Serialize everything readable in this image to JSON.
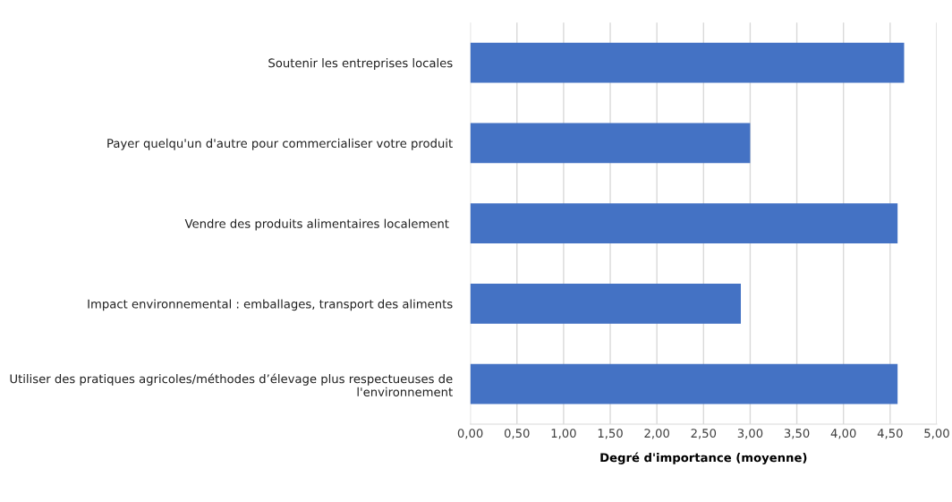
{
  "chart_data": {
    "type": "bar",
    "orientation": "horizontal",
    "xlabel": "Degré d'importance (moyenne)",
    "categories": [
      "Soutenir les entreprises locales",
      "Payer quelqu'un d'autre pour commercialiser votre produit",
      "Vendre des produits alimentaires localement ",
      "Impact environnemental : emballages, transport des aliments",
      "Utiliser des pratiques agricoles/méthodes d’élevage plus respectueuses de l'environnement"
    ],
    "values": [
      4.65,
      3.0,
      4.58,
      2.9,
      4.58
    ],
    "color": "#4472c4",
    "xlim": [
      0,
      5
    ],
    "xticks": [
      {
        "value": 0,
        "label": "0,00"
      },
      {
        "value": 0.5,
        "label": "0,50"
      },
      {
        "value": 1,
        "label": "1,00"
      },
      {
        "value": 1.5,
        "label": "1,50"
      },
      {
        "value": 2,
        "label": "2,00"
      },
      {
        "value": 2.5,
        "label": "2,50"
      },
      {
        "value": 3,
        "label": "3,00"
      },
      {
        "value": 3.5,
        "label": "3,50"
      },
      {
        "value": 4,
        "label": "4,00"
      },
      {
        "value": 4.5,
        "label": "4,50"
      },
      {
        "value": 5,
        "label": "5,00"
      }
    ],
    "grid": "x"
  }
}
